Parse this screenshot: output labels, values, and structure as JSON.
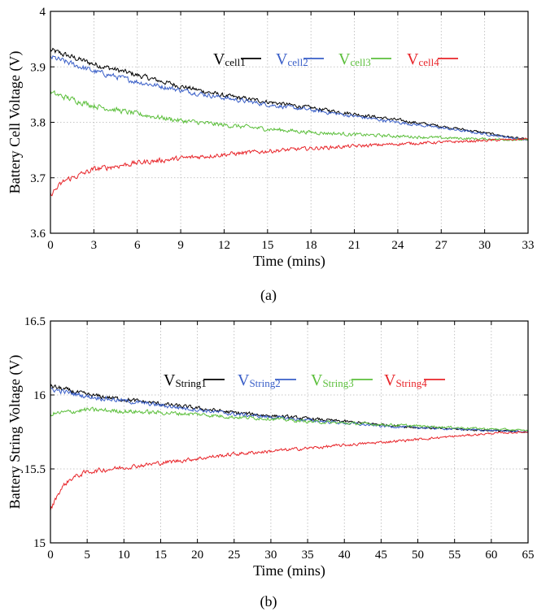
{
  "chart_data": [
    {
      "type": "line",
      "caption": "(a)",
      "xlabel": "Time (mins)",
      "ylabel": "Battery Cell Voltage (V)",
      "xlim": [
        0,
        33
      ],
      "ylim": [
        3.6,
        4.0
      ],
      "xticks": [
        0,
        3,
        6,
        9,
        12,
        15,
        18,
        21,
        24,
        27,
        30,
        33
      ],
      "yticks": [
        3.6,
        3.7,
        3.8,
        3.9,
        4.0
      ],
      "ytick_labels": [
        "3.6",
        "3.7",
        "3.8",
        "3.9",
        "4"
      ],
      "grid": true,
      "legend_position": "top-right",
      "series": [
        {
          "name": "V",
          "subscript": "cell1",
          "color": "#000000",
          "x": [
            0,
            3,
            6,
            9,
            12,
            15,
            18,
            21,
            24,
            27,
            30,
            33
          ],
          "y": [
            3.93,
            3.905,
            3.885,
            3.865,
            3.848,
            3.837,
            3.826,
            3.815,
            3.804,
            3.793,
            3.781,
            3.768
          ]
        },
        {
          "name": "V",
          "subscript": "cell2",
          "color": "#3a5fc8",
          "x": [
            0,
            3,
            6,
            9,
            12,
            15,
            18,
            21,
            24,
            27,
            30,
            33
          ],
          "y": [
            3.918,
            3.892,
            3.873,
            3.858,
            3.844,
            3.832,
            3.822,
            3.811,
            3.8,
            3.79,
            3.779,
            3.768
          ]
        },
        {
          "name": "V",
          "subscript": "cell3",
          "color": "#5cbf3c",
          "x": [
            0,
            3,
            6,
            9,
            12,
            15,
            18,
            21,
            24,
            27,
            30,
            33
          ],
          "y": [
            3.853,
            3.83,
            3.815,
            3.803,
            3.795,
            3.788,
            3.782,
            3.778,
            3.775,
            3.772,
            3.77,
            3.768
          ]
        },
        {
          "name": "V",
          "subscript": "cell4",
          "color": "#e8252a",
          "x": [
            0,
            1,
            3,
            6,
            9,
            12,
            15,
            18,
            21,
            24,
            27,
            30,
            33
          ],
          "y": [
            3.67,
            3.695,
            3.715,
            3.727,
            3.735,
            3.742,
            3.748,
            3.753,
            3.757,
            3.761,
            3.764,
            3.767,
            3.77
          ]
        }
      ]
    },
    {
      "type": "line",
      "caption": "(b)",
      "xlabel": "Time (mins)",
      "ylabel": "Battery String Voltage (V)",
      "xlim": [
        0,
        65
      ],
      "ylim": [
        15,
        16.5
      ],
      "xticks": [
        0,
        5,
        10,
        15,
        20,
        25,
        30,
        35,
        40,
        45,
        50,
        55,
        60,
        65
      ],
      "yticks": [
        15,
        15.5,
        16,
        16.5
      ],
      "ytick_labels": [
        "15",
        "15.5",
        "16",
        "16.5"
      ],
      "grid": true,
      "legend_position": "top-right",
      "series": [
        {
          "name": "V",
          "subscript": "String1",
          "color": "#000000",
          "x": [
            0,
            5,
            10,
            15,
            20,
            25,
            30,
            35,
            40,
            45,
            50,
            55,
            60,
            65
          ],
          "y": [
            16.06,
            16.0,
            15.97,
            15.94,
            15.91,
            15.88,
            15.86,
            15.84,
            15.82,
            15.8,
            15.78,
            15.77,
            15.76,
            15.75
          ]
        },
        {
          "name": "V",
          "subscript": "String2",
          "color": "#3a5fc8",
          "x": [
            0,
            5,
            10,
            15,
            20,
            25,
            30,
            35,
            40,
            45,
            50,
            55,
            60,
            65
          ],
          "y": [
            16.04,
            15.99,
            15.96,
            15.93,
            15.9,
            15.87,
            15.85,
            15.83,
            15.81,
            15.79,
            15.78,
            15.77,
            15.76,
            15.75
          ]
        },
        {
          "name": "V",
          "subscript": "String3",
          "color": "#5cbf3c",
          "x": [
            0,
            5,
            10,
            15,
            20,
            25,
            30,
            35,
            40,
            45,
            50,
            55,
            60,
            65
          ],
          "y": [
            15.87,
            15.9,
            15.89,
            15.88,
            15.87,
            15.85,
            15.84,
            15.82,
            15.81,
            15.8,
            15.79,
            15.78,
            15.77,
            15.76
          ]
        },
        {
          "name": "V",
          "subscript": "String4",
          "color": "#e8252a",
          "x": [
            0,
            1,
            2,
            3,
            5,
            10,
            15,
            20,
            25,
            30,
            35,
            40,
            45,
            50,
            55,
            60,
            65
          ],
          "y": [
            15.22,
            15.33,
            15.4,
            15.44,
            15.48,
            15.51,
            15.54,
            15.57,
            15.6,
            15.62,
            15.64,
            15.66,
            15.68,
            15.7,
            15.72,
            15.74,
            15.75
          ]
        }
      ]
    }
  ]
}
